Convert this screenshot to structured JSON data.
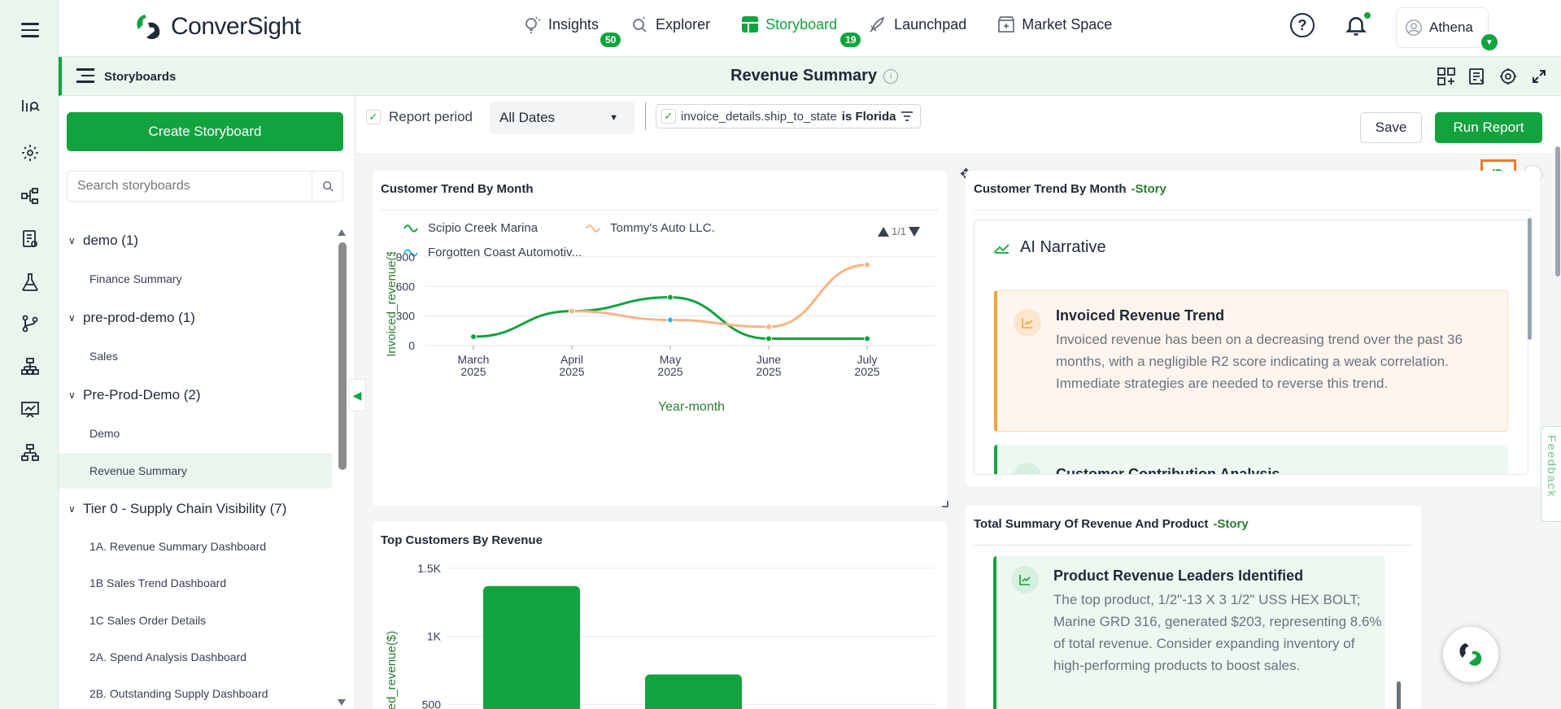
{
  "brand": {
    "name": "ConverSight"
  },
  "nav": [
    {
      "label": "Insights",
      "badge": "50"
    },
    {
      "label": "Explorer",
      "badge": ""
    },
    {
      "label": "Storyboard",
      "badge": "19"
    },
    {
      "label": "Launchpad",
      "badge": ""
    },
    {
      "label": "Market Space",
      "badge": ""
    }
  ],
  "user": {
    "name": "Athena"
  },
  "help_symbol": "?",
  "subheader": {
    "section": "Storyboards",
    "title": "Revenue Summary",
    "info_symbol": "i"
  },
  "sidebar": {
    "create_label": "Create Storyboard",
    "search_placeholder": "Search storyboards",
    "groups": [
      {
        "label": "demo (1)",
        "items": [
          "Finance Summary"
        ]
      },
      {
        "label": "pre-prod-demo (1)",
        "items": [
          "Sales"
        ]
      },
      {
        "label": "Pre-Prod-Demo (2)",
        "items": [
          "Demo",
          "Revenue Summary"
        ]
      },
      {
        "label": "Tier 0 - Supply Chain Visibility (7)",
        "items": [
          "1A. Revenue Summary Dashboard",
          "1B Sales Trend Dashboard",
          "1C Sales Order Details",
          "2A. Spend Analysis Dashboard",
          "2B. Outstanding Supply Dashboard"
        ]
      }
    ],
    "active_item": "Revenue Summary"
  },
  "filters": {
    "report_period_label": "Report period",
    "date_value": "All Dates",
    "filter_field": "invoice_details.ship_to_state",
    "filter_value": "is Florida",
    "save_label": "Save",
    "run_label": "Run Report"
  },
  "cards": {
    "trend": {
      "title": "Customer Trend By Month",
      "pager": "1/1"
    },
    "narrative": {
      "title": "Customer Trend By Month",
      "suffix": "-Story",
      "heading": "AI Narrative",
      "insights": [
        {
          "title": "Invoiced Revenue Trend",
          "text": "Invoiced revenue has been on a decreasing trend over the past 36 months, with a negligible R2 score indicating a weak correlation. Immediate strategies are needed to reverse this trend."
        },
        {
          "title": "Customer Contribution Analysis",
          "text": ""
        }
      ]
    },
    "top_customers": {
      "title": "Top Customers By Revenue"
    },
    "total_summary": {
      "title": "Total Summary Of Revenue And Product",
      "suffix": "-Story",
      "insight_title": "Product Revenue Leaders Identified",
      "insight_text": "The top product, 1/2\"-13 X 3 1/2\" USS HEX BOLT; Marine GRD 316, generated $203, representing 8.6% of total revenue. Consider expanding inventory of high-performing products to boost sales."
    }
  },
  "feedback_label": "Feedback",
  "colors": {
    "accent": "#12a33f",
    "series_1": "#12a33f",
    "series_2": "#f9b484",
    "series_3": "#29b6f6",
    "highlight": "#f07b2a"
  },
  "chart_data": [
    {
      "type": "line",
      "title": "Customer Trend By Month",
      "xlabel": "Year-month",
      "ylabel": "Invoiced_revenue($)",
      "categories": [
        "March 2025",
        "April 2025",
        "May 2025",
        "June 2025",
        "July 2025"
      ],
      "category_lines": [
        [
          "March",
          "2025"
        ],
        [
          "April",
          "2025"
        ],
        [
          "May",
          "2025"
        ],
        [
          "June",
          "2025"
        ],
        [
          "July",
          "2025"
        ]
      ],
      "yticks": [
        0,
        300,
        600,
        900
      ],
      "ylim": [
        0,
        900
      ],
      "series": [
        {
          "name": "Scipio Creek Marina",
          "values": [
            90,
            350,
            490,
            70,
            70
          ]
        },
        {
          "name": "Tommy's  Auto LLC.",
          "values": [
            null,
            350,
            260,
            190,
            820
          ]
        },
        {
          "name": "Forgotten Coast Automotiv...",
          "values": [
            null,
            null,
            260,
            null,
            null
          ]
        }
      ],
      "legend": "top",
      "grid": true
    },
    {
      "type": "bar",
      "title": "Top Customers By Revenue",
      "ylabel": "Invoiced_revenue($)",
      "ylabel_visible": "iced_revenue($)",
      "yticks": [
        "1.5K",
        "1K",
        "500"
      ],
      "ytick_values": [
        1500,
        1000,
        500
      ],
      "ylim": [
        0,
        1500
      ],
      "values": [
        1370,
        720
      ],
      "grid": true
    }
  ]
}
